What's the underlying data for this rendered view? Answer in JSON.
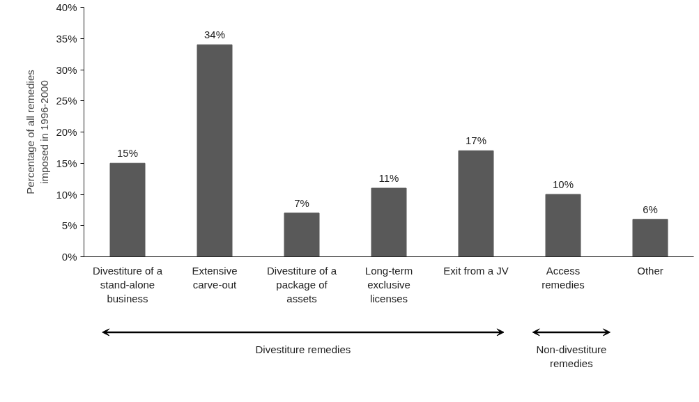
{
  "chart_data": {
    "type": "bar",
    "ylabel": "Percentage of all remedies\nimposed in 1996-2000",
    "categories": [
      "Divestiture of a\nstand-alone\nbusiness",
      "Extensive\ncarve-out",
      "Divestiture of a\npackage of\nassets",
      "Long-term\nexclusive\nlicenses",
      "Exit from a JV",
      "Access\nremedies",
      "Other"
    ],
    "values": [
      15,
      34,
      7,
      11,
      17,
      10,
      6
    ],
    "value_labels": [
      "15%",
      "34%",
      "7%",
      "11%",
      "17%",
      "10%",
      "6%"
    ],
    "color": "#595959",
    "ylim": [
      0,
      40
    ],
    "yticks": [
      {
        "value": 0,
        "label": "0%"
      },
      {
        "value": 5,
        "label": "5%"
      },
      {
        "value": 10,
        "label": "10%"
      },
      {
        "value": 15,
        "label": "15%"
      },
      {
        "value": 20,
        "label": "20%"
      },
      {
        "value": 25,
        "label": "25%"
      },
      {
        "value": 30,
        "label": "30%"
      },
      {
        "value": 35,
        "label": "35%"
      },
      {
        "value": 40,
        "label": "40%"
      }
    ],
    "grid": false,
    "annotations": [
      "Divestiture remedies",
      "Non-divestiture\nremedies"
    ]
  }
}
